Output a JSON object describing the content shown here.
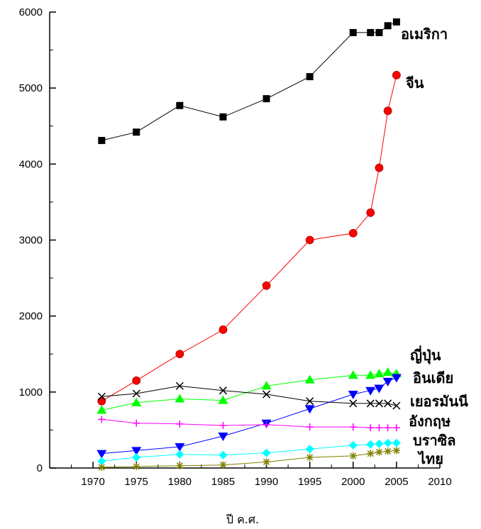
{
  "chart_data": {
    "type": "line",
    "title": "",
    "xlabel": "ปี ค.ศ.",
    "ylabel": "",
    "xlim": [
      1965,
      2010
    ],
    "ylim": [
      0,
      6000
    ],
    "x_ticks": [
      1970,
      1975,
      1980,
      1985,
      1990,
      1995,
      2000,
      2005,
      2010
    ],
    "y_ticks": [
      0,
      1000,
      2000,
      3000,
      4000,
      5000,
      6000
    ],
    "grid": false,
    "legend": "labels at line ends",
    "series": [
      {
        "name": "อเมริกา",
        "color": "#000000",
        "marker": "square",
        "x": [
          1971,
          1975,
          1980,
          1985,
          1990,
          1995,
          2000,
          2002,
          2003,
          2004,
          2005
        ],
        "y": [
          4310,
          4420,
          4770,
          4620,
          4860,
          5150,
          5730,
          5730,
          5730,
          5820,
          5870
        ]
      },
      {
        "name": "จีน",
        "color": "#ff0000",
        "marker": "circle",
        "x": [
          1971,
          1975,
          1980,
          1985,
          1990,
          1995,
          2000,
          2002,
          2003,
          2004,
          2005
        ],
        "y": [
          880,
          1150,
          1500,
          1820,
          2400,
          3000,
          3090,
          3360,
          3950,
          4700,
          5170
        ]
      },
      {
        "name": "ญี่ปุ่น",
        "color": "#00ff00",
        "marker": "triangle-up",
        "x": [
          1971,
          1975,
          1980,
          1985,
          1990,
          1995,
          2000,
          2002,
          2003,
          2004,
          2005
        ],
        "y": [
          760,
          860,
          910,
          890,
          1080,
          1160,
          1220,
          1220,
          1240,
          1260,
          1240
        ]
      },
      {
        "name": "อินเดีย",
        "color": "#0000ff",
        "marker": "triangle-down",
        "x": [
          1971,
          1975,
          1980,
          1985,
          1990,
          1995,
          2000,
          2002,
          2003,
          2004,
          2005
        ],
        "y": [
          190,
          230,
          280,
          420,
          590,
          780,
          970,
          1020,
          1050,
          1140,
          1190
        ]
      },
      {
        "name": "เยอรมันนี",
        "color": "#000000",
        "marker": "x",
        "x": [
          1971,
          1975,
          1980,
          1985,
          1990,
          1995,
          2000,
          2002,
          2003,
          2004,
          2005
        ],
        "y": [
          940,
          980,
          1080,
          1020,
          970,
          880,
          850,
          850,
          850,
          850,
          820
        ]
      },
      {
        "name": "อังกฤษ",
        "color": "#ff00ff",
        "marker": "plus",
        "x": [
          1971,
          1975,
          1980,
          1985,
          1990,
          1995,
          2000,
          2002,
          2003,
          2004,
          2005
        ],
        "y": [
          640,
          590,
          580,
          560,
          570,
          540,
          540,
          530,
          530,
          530,
          530
        ]
      },
      {
        "name": "บราซิล",
        "color": "#00ffff",
        "marker": "diamond",
        "x": [
          1971,
          1975,
          1980,
          1985,
          1990,
          1995,
          2000,
          2002,
          2003,
          2004,
          2005
        ],
        "y": [
          90,
          140,
          180,
          170,
          200,
          250,
          300,
          310,
          320,
          330,
          330
        ]
      },
      {
        "name": "ไทย",
        "color": "#808000",
        "marker": "asterisk",
        "x": [
          1971,
          1975,
          1980,
          1985,
          1990,
          1995,
          2000,
          2002,
          2003,
          2004,
          2005
        ],
        "y": [
          10,
          20,
          30,
          40,
          80,
          140,
          160,
          190,
          210,
          220,
          230
        ]
      }
    ]
  }
}
